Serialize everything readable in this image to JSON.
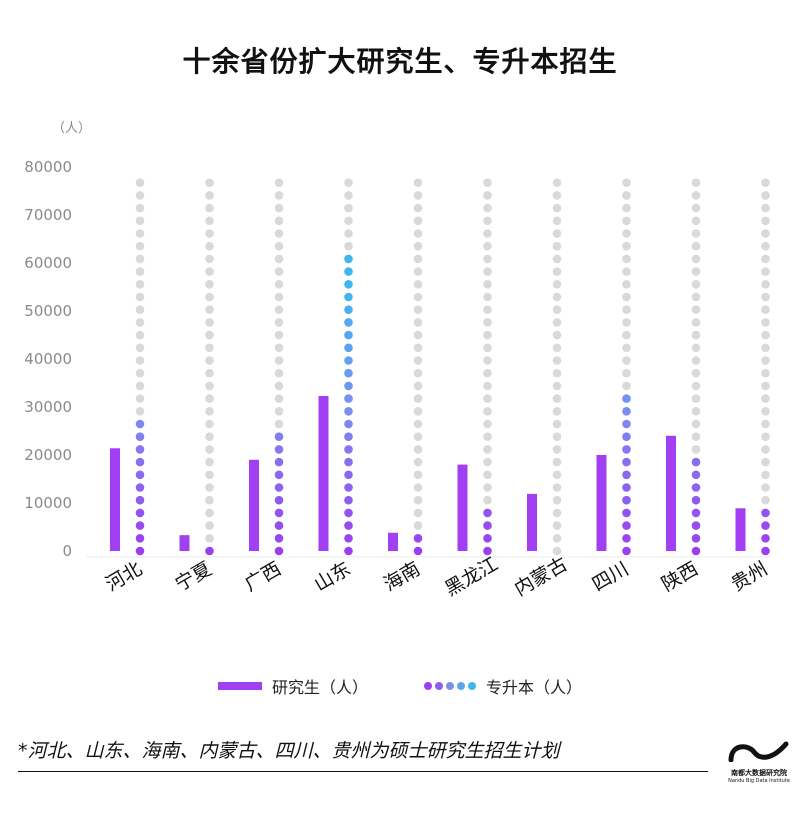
{
  "title": "十余省份扩大研究生、专升本招生",
  "unit_label": "（人）",
  "legend": {
    "grad_label": "研究生（人）",
    "zsb_label": "专升本（人）"
  },
  "footnote": "*河北、山东、海南、内蒙古、四川、贵州为硕士研究生招生计划",
  "logo": {
    "cn": "南都大数据研究院",
    "en": "Nandu Big Data Institute"
  },
  "colors": {
    "grad_bar": "#a23ff2",
    "zsb_low": "#9a3ff0",
    "zsb_high": "#7b8ff0",
    "zsb_top": "#3fb6ee",
    "track": "#d9d9d9",
    "axis_text": "#8a8a8a"
  },
  "chart_data": {
    "type": "bar",
    "title": "十余省份扩大研究生、专升本招生",
    "ylabel": "（人）",
    "ylim": [
      0,
      80000
    ],
    "yticks": [
      0,
      10000,
      20000,
      30000,
      40000,
      50000,
      60000,
      70000,
      80000
    ],
    "categories": [
      "河北",
      "宁夏",
      "广西",
      "山东",
      "海南",
      "黑龙江",
      "内蒙古",
      "四川",
      "陕西",
      "贵州"
    ],
    "series": [
      {
        "name": "研究生（人）",
        "style": "bar",
        "values": [
          21400,
          3300,
          19000,
          32300,
          3800,
          18000,
          11900,
          20000,
          24000,
          8900
        ]
      },
      {
        "name": "专升本（人）",
        "style": "dots",
        "values": [
          27500,
          2000,
          24500,
          62000,
          3500,
          10000,
          null,
          32000,
          20500,
          9500
        ]
      }
    ]
  }
}
